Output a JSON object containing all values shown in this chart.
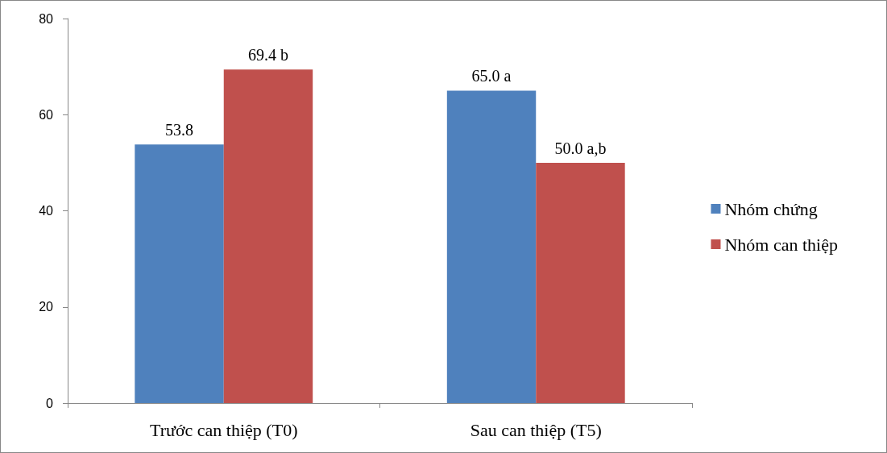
{
  "chart_data": {
    "type": "bar",
    "categories": [
      "Trước can thiệp (T0)",
      "Sau can thiệp (T5)"
    ],
    "series": [
      {
        "name": "Nhóm chứng",
        "color": "#4f81bd",
        "values": [
          53.8,
          65.0
        ],
        "value_labels": [
          "53.8",
          "65.0 a"
        ]
      },
      {
        "name": "Nhóm can thiệp",
        "color": "#c0504d",
        "values": [
          69.4,
          50.0
        ],
        "value_labels": [
          "69.4 b",
          "50.0 a,b"
        ]
      }
    ],
    "ylim": [
      0,
      80
    ],
    "yticks": [
      0,
      20,
      40,
      60,
      80
    ],
    "grid": false,
    "legend": "right"
  }
}
